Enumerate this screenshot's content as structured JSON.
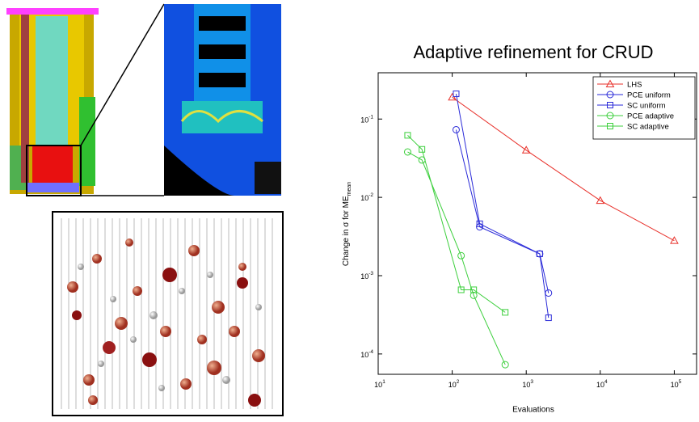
{
  "chart_data": {
    "type": "line",
    "title": "Adaptive refinement for CRUD",
    "xlabel": "Evaluations",
    "ylabel": "Change in σ for ME",
    "ylabel_sub": "mean",
    "xscale": "log",
    "yscale": "log",
    "xlim": [
      10,
      200000
    ],
    "ylim": [
      5.5e-05,
      0.39
    ],
    "xticks": [
      {
        "value": 10,
        "label": "10",
        "sup": "1"
      },
      {
        "value": 100,
        "label": "10",
        "sup": "2"
      },
      {
        "value": 1000,
        "label": "10",
        "sup": "3"
      },
      {
        "value": 10000,
        "label": "10",
        "sup": "4"
      },
      {
        "value": 100000,
        "label": "10",
        "sup": "5"
      }
    ],
    "yticks": [
      {
        "value": 0.0001,
        "label": "10",
        "sup": "-4"
      },
      {
        "value": 0.001,
        "label": "10",
        "sup": "-3"
      },
      {
        "value": 0.01,
        "label": "10",
        "sup": "-2"
      },
      {
        "value": 0.1,
        "label": "10",
        "sup": "-1"
      }
    ],
    "legend": "upper right",
    "series": [
      {
        "name": "LHS",
        "color": "#e8302a",
        "marker": "triangle",
        "x": [
          100,
          1000,
          10000,
          100000
        ],
        "values": [
          0.19,
          0.04,
          0.0091,
          0.0028
        ]
      },
      {
        "name": "PCE uniform",
        "color": "#2a2ad8",
        "marker": "circle",
        "x": [
          113,
          235,
          1520,
          2000
        ],
        "values": [
          0.073,
          0.0042,
          0.0019,
          0.0006
        ]
      },
      {
        "name": "SC uniform",
        "color": "#2a2ad8",
        "marker": "square",
        "x": [
          113,
          235,
          1520,
          2000
        ],
        "values": [
          0.21,
          0.0046,
          0.0019,
          0.00029
        ]
      },
      {
        "name": "PCE adaptive",
        "color": "#3ccf3c",
        "marker": "circle",
        "x": [
          25,
          39,
          132,
          195,
          520
        ],
        "values": [
          0.038,
          0.03,
          0.0018,
          0.00056,
          7.3e-05
        ]
      },
      {
        "name": "SC adaptive",
        "color": "#3ccf3c",
        "marker": "square",
        "x": [
          25,
          39,
          132,
          195,
          520
        ],
        "values": [
          0.062,
          0.041,
          0.00066,
          0.00066,
          0.00034
        ]
      }
    ]
  }
}
